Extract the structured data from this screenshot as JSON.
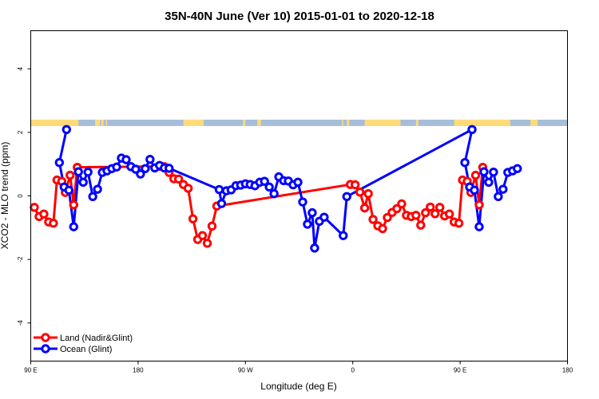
{
  "chart_data": {
    "type": "line",
    "title": "35N-40N June (Ver 10)   2015-01-01 to 2020-12-18",
    "xlabel": "Longitude (deg E)",
    "ylabel": "XCO2 - MLO trend (ppm)",
    "xlim": [
      90,
      540
    ],
    "ylim": [
      -5.2,
      5.2
    ],
    "x_ticks": [
      {
        "value": 90,
        "label": "90 E"
      },
      {
        "value": 180,
        "label": "180"
      },
      {
        "value": 270,
        "label": "90 W"
      },
      {
        "value": 360,
        "label": "0"
      },
      {
        "value": 450,
        "label": "90 E"
      },
      {
        "value": 540,
        "label": "180"
      }
    ],
    "y_ticks": [
      {
        "value": -4,
        "label": "-4"
      },
      {
        "value": -2,
        "label": "-2"
      },
      {
        "value": 0,
        "label": "0"
      },
      {
        "value": 2,
        "label": "2"
      },
      {
        "value": 4,
        "label": "4"
      }
    ],
    "landmask": {
      "y_range": [
        2.2,
        2.4
      ],
      "colors": {
        "land": "#ffdb77",
        "ocean": "#a6bddb"
      },
      "land_intervals": [
        [
          90,
          130
        ],
        [
          144,
          148
        ],
        [
          149,
          151
        ],
        [
          153,
          154
        ],
        [
          218,
          235
        ],
        [
          268,
          270
        ],
        [
          281,
          283
        ],
        [
          280,
          282
        ],
        [
          351,
          352
        ],
        [
          355,
          357
        ],
        [
          370,
          400
        ],
        [
          413,
          415
        ],
        [
          445,
          492
        ],
        [
          509,
          515
        ]
      ]
    },
    "series": [
      {
        "name": "Land (Nadir&Glint)",
        "color": "#ff0000",
        "points": [
          [
            93,
            -0.36
          ],
          [
            97,
            -0.65
          ],
          [
            101,
            -0.57
          ],
          [
            105,
            -0.82
          ],
          [
            109,
            -0.86
          ],
          [
            112,
            0.5
          ],
          [
            116,
            0.46
          ],
          [
            119,
            0.11
          ],
          [
            123,
            0.65
          ],
          [
            126,
            -0.28
          ],
          [
            129,
            0.9
          ],
          [
            198,
            0.93
          ],
          [
            202,
            0.92
          ],
          [
            206,
            0.74
          ],
          [
            210,
            0.54
          ],
          [
            214,
            0.53
          ],
          [
            218,
            0.36
          ],
          [
            222,
            0.24
          ],
          [
            226,
            -0.72
          ],
          [
            230,
            -1.37
          ],
          [
            234,
            -1.25
          ],
          [
            238,
            -1.49
          ],
          [
            242,
            -0.95
          ],
          [
            246,
            -0.32
          ],
          [
            358,
            0.36
          ],
          [
            362,
            0.35
          ],
          [
            366,
            0.12
          ],
          [
            370,
            -0.38
          ],
          [
            373,
            0.07
          ],
          [
            377,
            -0.74
          ],
          [
            381,
            -0.94
          ],
          [
            385,
            -1.03
          ],
          [
            389,
            -0.68
          ],
          [
            393,
            -0.52
          ],
          [
            397,
            -0.4
          ],
          [
            401,
            -0.25
          ],
          [
            405,
            -0.61
          ],
          [
            409,
            -0.65
          ],
          [
            413,
            -0.61
          ],
          [
            417,
            -0.92
          ],
          [
            421,
            -0.53
          ],
          [
            425,
            -0.35
          ],
          [
            429,
            -0.56
          ],
          [
            433,
            -0.36
          ],
          [
            437,
            -0.63
          ],
          [
            441,
            -0.57
          ],
          [
            445,
            -0.82
          ],
          [
            449,
            -0.86
          ],
          [
            452,
            0.5
          ],
          [
            456,
            0.46
          ],
          [
            459,
            0.11
          ],
          [
            463,
            0.65
          ],
          [
            466,
            -0.28
          ],
          [
            469,
            0.9
          ]
        ]
      },
      {
        "name": "Ocean (Glint)",
        "color": "#0000ff",
        "points": [
          [
            120,
            2.09
          ],
          [
            114,
            1.05
          ],
          [
            118,
            0.28
          ],
          [
            122,
            0.18
          ],
          [
            126,
            -0.97
          ],
          [
            130,
            0.76
          ],
          [
            134,
            0.43
          ],
          [
            138,
            0.75
          ],
          [
            142,
            -0.02
          ],
          [
            146,
            0.21
          ],
          [
            150,
            0.74
          ],
          [
            154,
            0.79
          ],
          [
            158,
            0.86
          ],
          [
            162,
            0.91
          ],
          [
            166,
            1.19
          ],
          [
            170,
            1.14
          ],
          [
            174,
            0.92
          ],
          [
            178,
            0.84
          ],
          [
            182,
            0.69
          ],
          [
            186,
            0.86
          ],
          [
            190,
            1.15
          ],
          [
            194,
            0.88
          ],
          [
            198,
            0.96
          ],
          [
            202,
            0.88
          ],
          [
            206,
            0.87
          ],
          [
            248,
            0.2
          ],
          [
            250,
            -0.24
          ],
          [
            254,
            0.16
          ],
          [
            258,
            0.19
          ],
          [
            262,
            0.32
          ],
          [
            266,
            0.34
          ],
          [
            270,
            0.38
          ],
          [
            274,
            0.36
          ],
          [
            278,
            0.32
          ],
          [
            282,
            0.43
          ],
          [
            286,
            0.46
          ],
          [
            290,
            0.28
          ],
          [
            294,
            0.07
          ],
          [
            298,
            0.6
          ],
          [
            302,
            0.48
          ],
          [
            306,
            0.47
          ],
          [
            310,
            0.35
          ],
          [
            314,
            0.43
          ],
          [
            318,
            -0.19
          ],
          [
            322,
            -0.89
          ],
          [
            326,
            -0.53
          ],
          [
            328,
            -1.64
          ],
          [
            332,
            -0.8
          ],
          [
            336,
            -0.67
          ],
          [
            352,
            -1.25
          ],
          [
            355,
            -0.02
          ],
          [
            460,
            2.09
          ],
          [
            454,
            1.05
          ],
          [
            458,
            0.28
          ],
          [
            462,
            0.18
          ],
          [
            466,
            -0.97
          ],
          [
            470,
            0.76
          ],
          [
            474,
            0.43
          ],
          [
            478,
            0.75
          ],
          [
            482,
            -0.02
          ],
          [
            486,
            0.21
          ],
          [
            490,
            0.74
          ],
          [
            494,
            0.79
          ],
          [
            498,
            0.86
          ]
        ]
      }
    ],
    "legend": {
      "placement": "bottom-left"
    },
    "grid": false
  }
}
